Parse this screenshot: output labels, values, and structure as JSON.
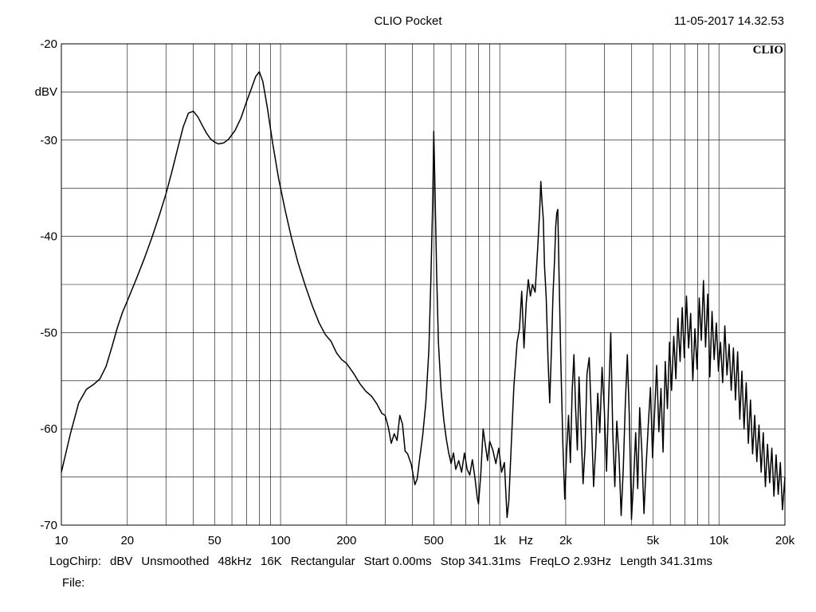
{
  "header": {
    "title": "CLIO Pocket",
    "timestamp": "11-05-2017 14.32.53",
    "logo": "CLIO"
  },
  "footer": {
    "items": [
      "LogChirp:",
      "dBV",
      "Unsmoothed",
      "48kHz",
      "16K",
      "Rectangular",
      "Start 0.00ms",
      "Stop 341.31ms",
      "FreqLO 2.93Hz",
      "Length 341.31ms"
    ],
    "file_label": "File:"
  },
  "chart_data": {
    "type": "line",
    "title": "CLIO Pocket",
    "xlabel": "Hz",
    "ylabel": "dBV",
    "x_scale": "log",
    "xlim": [
      10,
      20000
    ],
    "ylim": [
      -70,
      -20
    ],
    "grid": true,
    "x_tick_labels": [
      {
        "value": 10,
        "label": "10"
      },
      {
        "value": 20,
        "label": "20"
      },
      {
        "value": 50,
        "label": "50"
      },
      {
        "value": 100,
        "label": "100"
      },
      {
        "value": 200,
        "label": "200"
      },
      {
        "value": 500,
        "label": "500"
      },
      {
        "value": 1000,
        "label": "1k"
      },
      {
        "value": 2000,
        "label": "2k"
      },
      {
        "value": 5000,
        "label": "5k"
      },
      {
        "value": 10000,
        "label": "10k"
      },
      {
        "value": 20000,
        "label": "20k"
      }
    ],
    "y_tick_labels": [
      {
        "value": -20,
        "label": "-20"
      },
      {
        "value": -30,
        "label": "-30"
      },
      {
        "value": -40,
        "label": "-40"
      },
      {
        "value": -50,
        "label": "-50"
      },
      {
        "value": -60,
        "label": "-60"
      },
      {
        "value": -70,
        "label": "-70"
      }
    ],
    "series": [
      {
        "color": "#000000",
        "points": [
          [
            10,
            -64.5
          ],
          [
            11,
            -60.5
          ],
          [
            12,
            -57.3
          ],
          [
            13,
            -55.9
          ],
          [
            14,
            -55.4
          ],
          [
            15,
            -54.8
          ],
          [
            16,
            -53.5
          ],
          [
            17,
            -51.5
          ],
          [
            18,
            -49.5
          ],
          [
            19,
            -47.9
          ],
          [
            20,
            -46.7
          ],
          [
            22,
            -44.4
          ],
          [
            24,
            -42.2
          ],
          [
            26,
            -40.0
          ],
          [
            28,
            -37.8
          ],
          [
            30,
            -35.6
          ],
          [
            32,
            -33.2
          ],
          [
            34,
            -30.8
          ],
          [
            36,
            -28.6
          ],
          [
            38,
            -27.2
          ],
          [
            40,
            -27.0
          ],
          [
            42,
            -27.6
          ],
          [
            44,
            -28.5
          ],
          [
            46,
            -29.3
          ],
          [
            48,
            -29.9
          ],
          [
            50,
            -30.2
          ],
          [
            52,
            -30.4
          ],
          [
            55,
            -30.3
          ],
          [
            58,
            -29.9
          ],
          [
            62,
            -29.0
          ],
          [
            66,
            -27.7
          ],
          [
            70,
            -26.0
          ],
          [
            74,
            -24.5
          ],
          [
            77,
            -23.4
          ],
          [
            80,
            -22.9
          ],
          [
            83,
            -23.9
          ],
          [
            87,
            -26.6
          ],
          [
            92,
            -30.3
          ],
          [
            98,
            -34.0
          ],
          [
            105,
            -37.3
          ],
          [
            112,
            -40.1
          ],
          [
            120,
            -42.7
          ],
          [
            130,
            -45.2
          ],
          [
            140,
            -47.3
          ],
          [
            150,
            -49.0
          ],
          [
            160,
            -50.2
          ],
          [
            170,
            -50.9
          ],
          [
            180,
            -52.1
          ],
          [
            190,
            -52.8
          ],
          [
            200,
            -53.2
          ],
          [
            215,
            -54.2
          ],
          [
            230,
            -55.3
          ],
          [
            245,
            -56.1
          ],
          [
            260,
            -56.6
          ],
          [
            275,
            -57.4
          ],
          [
            290,
            -58.4
          ],
          [
            300,
            -58.6
          ],
          [
            310,
            -59.8
          ],
          [
            320,
            -61.5
          ],
          [
            330,
            -60.5
          ],
          [
            340,
            -61.2
          ],
          [
            350,
            -58.6
          ],
          [
            360,
            -59.5
          ],
          [
            370,
            -62.3
          ],
          [
            380,
            -62.6
          ],
          [
            395,
            -63.7
          ],
          [
            410,
            -65.8
          ],
          [
            420,
            -65.2
          ],
          [
            430,
            -63.3
          ],
          [
            445,
            -60.7
          ],
          [
            460,
            -57.3
          ],
          [
            475,
            -51.8
          ],
          [
            485,
            -44.5
          ],
          [
            495,
            -35.8
          ],
          [
            500,
            -29.1
          ],
          [
            505,
            -33.6
          ],
          [
            515,
            -43.5
          ],
          [
            525,
            -51.0
          ],
          [
            540,
            -56.0
          ],
          [
            555,
            -59.0
          ],
          [
            570,
            -61.0
          ],
          [
            585,
            -62.5
          ],
          [
            600,
            -63.6
          ],
          [
            615,
            -62.5
          ],
          [
            630,
            -64.2
          ],
          [
            650,
            -63.3
          ],
          [
            670,
            -64.5
          ],
          [
            690,
            -62.5
          ],
          [
            710,
            -64.2
          ],
          [
            730,
            -64.8
          ],
          [
            750,
            -63.2
          ],
          [
            770,
            -65.0
          ],
          [
            790,
            -67.2
          ],
          [
            800,
            -67.8
          ],
          [
            820,
            -64.6
          ],
          [
            840,
            -60.0
          ],
          [
            860,
            -61.7
          ],
          [
            880,
            -63.3
          ],
          [
            900,
            -61.3
          ],
          [
            930,
            -62.2
          ],
          [
            960,
            -63.6
          ],
          [
            990,
            -62.0
          ],
          [
            1020,
            -64.5
          ],
          [
            1050,
            -63.5
          ],
          [
            1080,
            -69.2
          ],
          [
            1100,
            -67.5
          ],
          [
            1130,
            -61.4
          ],
          [
            1160,
            -55.6
          ],
          [
            1200,
            -51.0
          ],
          [
            1230,
            -49.6
          ],
          [
            1260,
            -45.7
          ],
          [
            1290,
            -51.6
          ],
          [
            1320,
            -47.0
          ],
          [
            1350,
            -44.5
          ],
          [
            1380,
            -46.2
          ],
          [
            1410,
            -45.0
          ],
          [
            1450,
            -45.8
          ],
          [
            1490,
            -41.2
          ],
          [
            1520,
            -37.5
          ],
          [
            1540,
            -34.3
          ],
          [
            1560,
            -36.5
          ],
          [
            1580,
            -38.2
          ],
          [
            1600,
            -43.0
          ],
          [
            1630,
            -46.5
          ],
          [
            1660,
            -52.7
          ],
          [
            1690,
            -57.3
          ],
          [
            1720,
            -52.0
          ],
          [
            1750,
            -46.0
          ],
          [
            1780,
            -42.3
          ],
          [
            1800,
            -39.0
          ],
          [
            1820,
            -37.6
          ],
          [
            1840,
            -37.2
          ],
          [
            1870,
            -45.5
          ],
          [
            1900,
            -53.0
          ],
          [
            1940,
            -61.5
          ],
          [
            1980,
            -67.3
          ],
          [
            2020,
            -62.2
          ],
          [
            2060,
            -58.6
          ],
          [
            2100,
            -63.5
          ],
          [
            2140,
            -56.0
          ],
          [
            2180,
            -52.3
          ],
          [
            2220,
            -58.0
          ],
          [
            2260,
            -62.2
          ],
          [
            2300,
            -54.6
          ],
          [
            2350,
            -60.3
          ],
          [
            2400,
            -65.7
          ],
          [
            2450,
            -62.0
          ],
          [
            2500,
            -54.3
          ],
          [
            2560,
            -52.6
          ],
          [
            2620,
            -59.0
          ],
          [
            2680,
            -66.0
          ],
          [
            2740,
            -62.0
          ],
          [
            2800,
            -56.3
          ],
          [
            2860,
            -60.4
          ],
          [
            2930,
            -53.6
          ],
          [
            3000,
            -58.0
          ],
          [
            3070,
            -64.4
          ],
          [
            3140,
            -56.8
          ],
          [
            3210,
            -50.0
          ],
          [
            3280,
            -60.6
          ],
          [
            3350,
            -66.0
          ],
          [
            3420,
            -59.2
          ],
          [
            3500,
            -62.8
          ],
          [
            3580,
            -69.0
          ],
          [
            3660,
            -64.2
          ],
          [
            3740,
            -57.4
          ],
          [
            3820,
            -52.3
          ],
          [
            3900,
            -58.6
          ],
          [
            3990,
            -69.4
          ],
          [
            4080,
            -65.4
          ],
          [
            4170,
            -60.4
          ],
          [
            4260,
            -66.2
          ],
          [
            4350,
            -57.8
          ],
          [
            4450,
            -62.4
          ],
          [
            4550,
            -68.8
          ],
          [
            4650,
            -64.0
          ],
          [
            4760,
            -59.6
          ],
          [
            4870,
            -55.7
          ],
          [
            4980,
            -63.0
          ],
          [
            5090,
            -58.2
          ],
          [
            5200,
            -53.4
          ],
          [
            5320,
            -60.3
          ],
          [
            5440,
            -55.8
          ],
          [
            5560,
            -62.4
          ],
          [
            5690,
            -53.0
          ],
          [
            5820,
            -57.9
          ],
          [
            5950,
            -51.0
          ],
          [
            6080,
            -56.0
          ],
          [
            6220,
            -50.4
          ],
          [
            6360,
            -54.8
          ],
          [
            6500,
            -48.5
          ],
          [
            6650,
            -53.0
          ],
          [
            6800,
            -47.4
          ],
          [
            6950,
            -52.6
          ],
          [
            7110,
            -46.2
          ],
          [
            7270,
            -51.6
          ],
          [
            7430,
            -48.0
          ],
          [
            7600,
            -55.0
          ],
          [
            7770,
            -49.6
          ],
          [
            7950,
            -53.8
          ],
          [
            8130,
            -46.4
          ],
          [
            8310,
            -50.8
          ],
          [
            8500,
            -44.6
          ],
          [
            8690,
            -51.5
          ],
          [
            8890,
            -46.0
          ],
          [
            9090,
            -54.6
          ],
          [
            9300,
            -47.8
          ],
          [
            9510,
            -52.8
          ],
          [
            9730,
            -49.0
          ],
          [
            9950,
            -54.0
          ],
          [
            10170,
            -51.0
          ],
          [
            10400,
            -55.2
          ],
          [
            10640,
            -49.3
          ],
          [
            10880,
            -54.4
          ],
          [
            11130,
            -51.2
          ],
          [
            11380,
            -56.0
          ],
          [
            11640,
            -51.6
          ],
          [
            11900,
            -57.0
          ],
          [
            12170,
            -52.0
          ],
          [
            12450,
            -59.0
          ],
          [
            12730,
            -54.0
          ],
          [
            13020,
            -60.0
          ],
          [
            13320,
            -55.2
          ],
          [
            13620,
            -61.5
          ],
          [
            13930,
            -57.0
          ],
          [
            14240,
            -62.6
          ],
          [
            14560,
            -58.6
          ],
          [
            14890,
            -63.4
          ],
          [
            15230,
            -59.6
          ],
          [
            15580,
            -64.5
          ],
          [
            15930,
            -60.4
          ],
          [
            16290,
            -66.0
          ],
          [
            16660,
            -61.6
          ],
          [
            17040,
            -65.6
          ],
          [
            17430,
            -62.0
          ],
          [
            17820,
            -67.0
          ],
          [
            18230,
            -62.7
          ],
          [
            18640,
            -66.8
          ],
          [
            19060,
            -63.5
          ],
          [
            19490,
            -68.4
          ],
          [
            20000,
            -65.0
          ]
        ]
      }
    ]
  }
}
